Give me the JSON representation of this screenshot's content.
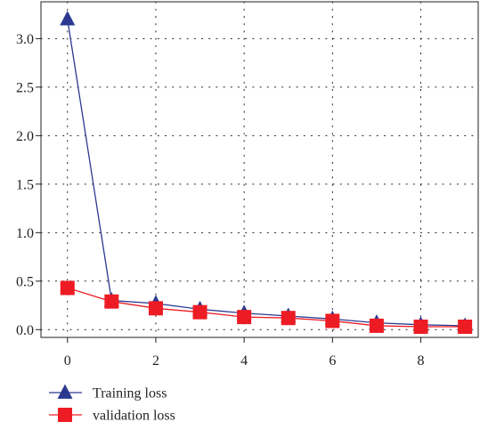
{
  "chart_data": {
    "type": "line",
    "title": "",
    "xlabel": "",
    "ylabel": "",
    "x": [
      0,
      1,
      2,
      3,
      4,
      5,
      6,
      7,
      8,
      9
    ],
    "xlim": [
      -0.6,
      9.3
    ],
    "ylim": [
      -0.08,
      3.38
    ],
    "x_ticks": [
      0,
      2,
      4,
      6,
      8
    ],
    "x_tick_labels": [
      "0",
      "2",
      "4",
      "6",
      "8"
    ],
    "y_ticks": [
      0.0,
      0.5,
      1.0,
      1.5,
      2.0,
      2.5,
      3.0
    ],
    "y_tick_labels": [
      "0.0",
      "0.5",
      "1.0",
      "1.5",
      "2.0",
      "2.5",
      "3.0"
    ],
    "grid": true,
    "legend_position": "below",
    "series": [
      {
        "name": "Training loss",
        "marker": "triangle",
        "color": "#2b3990",
        "values": [
          3.2,
          0.3,
          0.27,
          0.21,
          0.17,
          0.14,
          0.11,
          0.07,
          0.05,
          0.04
        ]
      },
      {
        "name": "validation loss",
        "marker": "square",
        "color": "#ed1c24",
        "values": [
          0.43,
          0.29,
          0.22,
          0.18,
          0.13,
          0.12,
          0.09,
          0.04,
          0.03,
          0.03
        ]
      }
    ]
  }
}
